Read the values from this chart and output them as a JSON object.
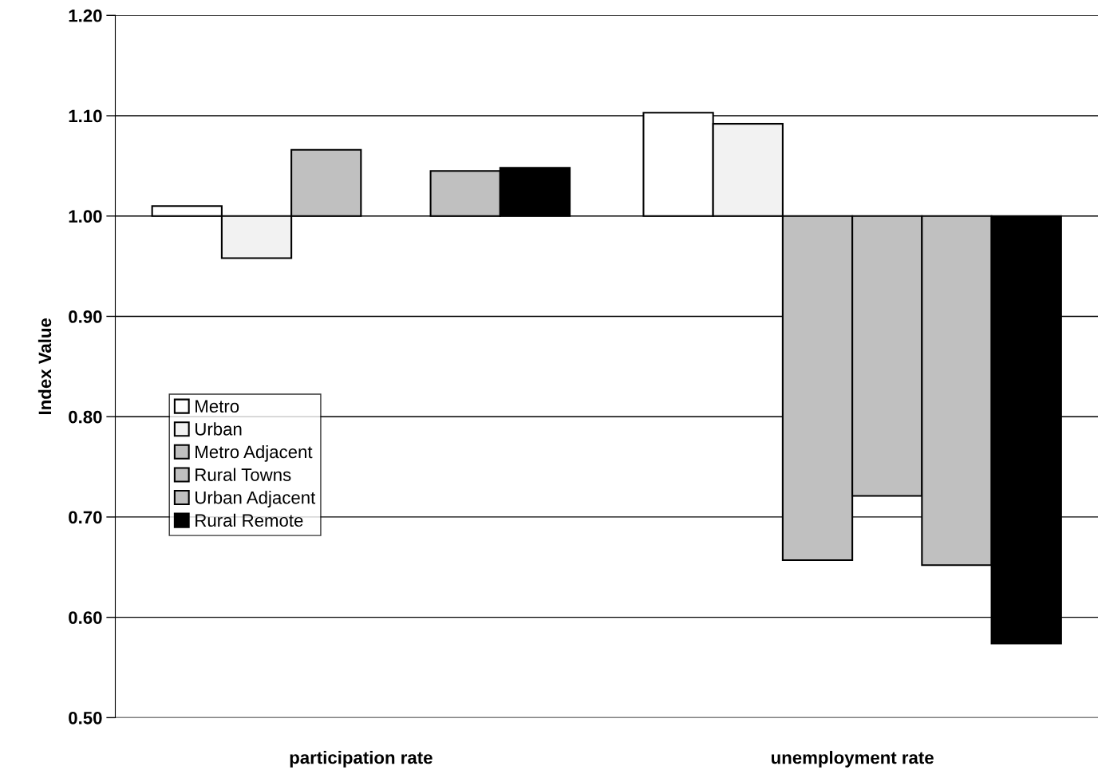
{
  "chart_data": {
    "type": "bar",
    "ylabel": "Index Value",
    "categories": [
      "participation rate",
      "unemployment rate"
    ],
    "series": [
      {
        "name": "Metro",
        "color": "#ffffff",
        "base": [
          1.0,
          1.0
        ],
        "values": [
          0.01,
          0.103
        ]
      },
      {
        "name": "Urban",
        "color": "#f2f2f2",
        "base": [
          1.0,
          1.0
        ],
        "values": [
          -0.042,
          0.092
        ]
      },
      {
        "name": "Metro Adjacent",
        "color": "#c0c0c0",
        "base": [
          1.0,
          1.0
        ],
        "values": [
          0.066,
          -0.343
        ]
      },
      {
        "name": "Rural Towns",
        "color": "#c0c0c0",
        "base": [
          null,
          1.0
        ],
        "values": [
          null,
          -0.279
        ]
      },
      {
        "name": "Urban Adjacent",
        "color": "#c0c0c0",
        "base": [
          1.0,
          1.0
        ],
        "values": [
          0.045,
          -0.348
        ]
      },
      {
        "name": "Rural Remote",
        "color": "#000000",
        "base": [
          1.0,
          1.0
        ],
        "values": [
          0.048,
          -0.426
        ]
      }
    ],
    "ylim": [
      0.5,
      1.2
    ],
    "yticks": [
      {
        "value": 0.5,
        "label": "0.50"
      },
      {
        "value": 0.6,
        "label": "0.60"
      },
      {
        "value": 0.7,
        "label": "0.70"
      },
      {
        "value": 0.8,
        "label": "0.80"
      },
      {
        "value": 0.9,
        "label": "0.90"
      },
      {
        "value": 1.0,
        "label": "1.00"
      },
      {
        "value": 1.1,
        "label": "1.10"
      },
      {
        "value": 1.2,
        "label": "1.20"
      }
    ],
    "grid": "y",
    "legend": "left"
  }
}
